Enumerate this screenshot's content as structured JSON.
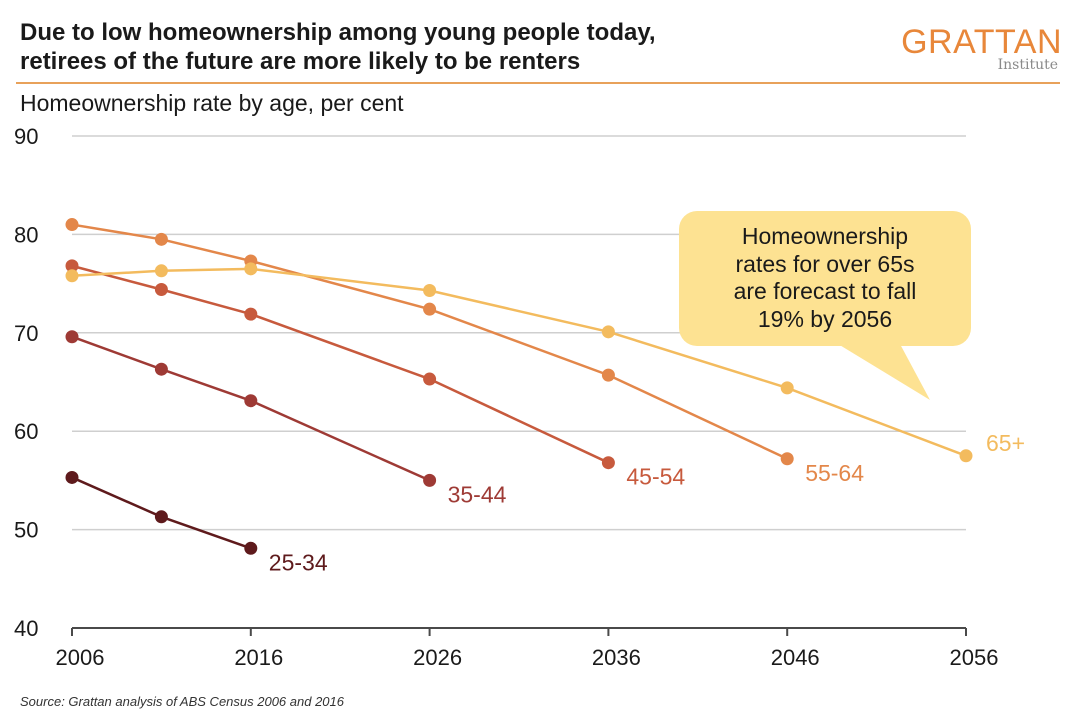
{
  "title_lines": [
    "Due to low homeownership among young people today,",
    "retirees of the future are more likely to be renters"
  ],
  "logo": {
    "main": "GRATTAN",
    "sub": "Institute",
    "color": "#e8873a"
  },
  "subtitle": "Homeownership rate by age, per cent",
  "source": "Source: Grattan analysis of ABS Census 2006 and 2016",
  "callout": {
    "lines": [
      "Homeownership",
      "rates for over 65s",
      "are forecast to fall",
      "19% by 2056"
    ],
    "color": "#fde292"
  },
  "chart_data": {
    "type": "line",
    "ylim": [
      40,
      90
    ],
    "yticks": [
      40,
      50,
      60,
      70,
      80,
      90
    ],
    "xlim": [
      2006,
      2056
    ],
    "xticks": [
      2006,
      2016,
      2026,
      2036,
      2046,
      2056
    ],
    "grid": true,
    "series": [
      {
        "name": "25-34",
        "color": "#5e1a1c",
        "points": [
          [
            2006,
            55.3
          ],
          [
            2011,
            51.3
          ],
          [
            2016,
            48.1
          ]
        ]
      },
      {
        "name": "35-44",
        "color": "#9e3a35",
        "points": [
          [
            2006,
            69.6
          ],
          [
            2011,
            66.3
          ],
          [
            2016,
            63.1
          ],
          [
            2026,
            55.0
          ]
        ]
      },
      {
        "name": "45-54",
        "color": "#c75a3d",
        "points": [
          [
            2006,
            76.8
          ],
          [
            2011,
            74.4
          ],
          [
            2016,
            71.9
          ],
          [
            2026,
            65.3
          ],
          [
            2036,
            56.8
          ]
        ]
      },
      {
        "name": "55-64",
        "color": "#e3874a",
        "points": [
          [
            2006,
            81.0
          ],
          [
            2011,
            79.5
          ],
          [
            2016,
            77.3
          ],
          [
            2026,
            72.4
          ],
          [
            2036,
            65.7
          ],
          [
            2046,
            57.2
          ]
        ]
      },
      {
        "name": "65+",
        "color": "#f3bb5e",
        "points": [
          [
            2006,
            75.8
          ],
          [
            2011,
            76.3
          ],
          [
            2016,
            76.5
          ],
          [
            2026,
            74.3
          ],
          [
            2036,
            70.1
          ],
          [
            2046,
            64.4
          ],
          [
            2056,
            57.5
          ]
        ]
      }
    ]
  }
}
